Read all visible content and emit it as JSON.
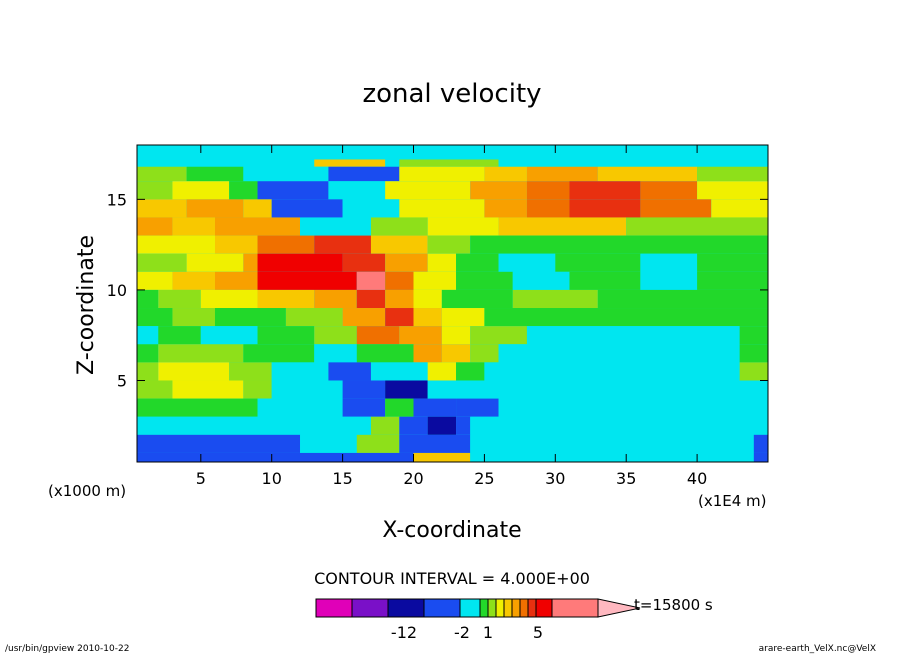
{
  "chart_data": {
    "type": "heatmap",
    "title": "zonal velocity",
    "xlabel": "X-coordinate",
    "ylabel": "Z-coordinate",
    "x_unit_left": "(x1000 m)",
    "x_unit_right": "(x1E4 m)",
    "xlim": [
      0.5,
      45
    ],
    "ylim": [
      0.5,
      18
    ],
    "x_ticks": [
      "5",
      "10",
      "15",
      "20",
      "25",
      "30",
      "35",
      "40"
    ],
    "y_ticks": [
      "5",
      "10",
      "15"
    ],
    "contour_interval_text": "CONTOUR INTERVAL = 4.000E+00",
    "time_label": "t=15800 s",
    "colorbar": {
      "colors": [
        "#e000b8",
        "#7a10c8",
        "#0a0aa0",
        "#1a4cf0",
        "#00e6f0",
        "#22d82a",
        "#8ee01a",
        "#f0f000",
        "#f8c800",
        "#f8a000",
        "#f07000",
        "#e83010",
        "#f00000",
        "#ff7a7a",
        "#ffb8c0"
      ],
      "labels": [
        "-12",
        "-2",
        "1",
        "5"
      ]
    },
    "bands": [
      {
        "z": [
          17.2,
          18
        ],
        "x": [
          [
            0.5,
            45
          ]
        ],
        "level": 4
      },
      {
        "z": [
          16.8,
          17.2
        ],
        "x": [
          [
            7,
            13
          ],
          [
            13,
            18
          ],
          [
            19,
            26
          ],
          [
            26,
            45
          ]
        ],
        "level": [
          4,
          8,
          6,
          4
        ]
      },
      {
        "z": [
          16.0,
          16.8
        ],
        "x": [
          [
            0.5,
            4
          ],
          [
            4,
            8
          ],
          [
            8,
            14
          ],
          [
            14,
            19
          ],
          [
            19,
            25
          ],
          [
            25,
            28
          ],
          [
            28,
            33
          ],
          [
            33,
            40
          ],
          [
            40,
            45
          ]
        ],
        "level": [
          6,
          5,
          4,
          3,
          7,
          8,
          9,
          8,
          6
        ]
      },
      {
        "z": [
          15.0,
          16.0
        ],
        "x": [
          [
            0.5,
            3
          ],
          [
            3,
            7
          ],
          [
            7,
            9
          ],
          [
            9,
            14
          ],
          [
            14,
            18
          ],
          [
            18,
            24
          ],
          [
            24,
            28
          ],
          [
            28,
            31
          ],
          [
            31,
            36
          ],
          [
            36,
            40
          ],
          [
            40,
            45
          ]
        ],
        "level": [
          6,
          7,
          5,
          3,
          4,
          7,
          9,
          10,
          11,
          10,
          7
        ]
      },
      {
        "z": [
          14.0,
          15.0
        ],
        "x": [
          [
            0.5,
            4
          ],
          [
            4,
            8
          ],
          [
            8,
            10
          ],
          [
            10,
            15
          ],
          [
            15,
            19
          ],
          [
            19,
            25
          ],
          [
            25,
            28
          ],
          [
            28,
            31
          ],
          [
            31,
            36
          ],
          [
            36,
            41
          ],
          [
            41,
            45
          ]
        ],
        "level": [
          8,
          9,
          8,
          3,
          4,
          7,
          9,
          10,
          11,
          10,
          7
        ]
      },
      {
        "z": [
          13.0,
          14.0
        ],
        "x": [
          [
            0.5,
            3
          ],
          [
            3,
            6
          ],
          [
            6,
            12
          ],
          [
            12,
            17
          ],
          [
            17,
            21
          ],
          [
            21,
            26
          ],
          [
            26,
            35
          ],
          [
            35,
            45
          ]
        ],
        "level": [
          9,
          8,
          9,
          4,
          6,
          7,
          8,
          6
        ]
      },
      {
        "z": [
          12.0,
          13.0
        ],
        "x": [
          [
            0.5,
            6
          ],
          [
            6,
            9
          ],
          [
            9,
            13
          ],
          [
            13,
            17
          ],
          [
            17,
            21
          ],
          [
            21,
            24
          ],
          [
            24,
            45
          ]
        ],
        "level": [
          7,
          8,
          10,
          11,
          8,
          6,
          5
        ]
      },
      {
        "z": [
          11.0,
          12.0
        ],
        "x": [
          [
            0.5,
            4
          ],
          [
            4,
            8
          ],
          [
            8,
            9
          ],
          [
            9,
            15
          ],
          [
            15,
            18
          ],
          [
            18,
            21
          ],
          [
            21,
            23
          ],
          [
            23,
            26
          ],
          [
            26,
            30
          ],
          [
            30,
            36
          ],
          [
            36,
            40
          ],
          [
            40,
            45
          ]
        ],
        "level": [
          6,
          7,
          9,
          12,
          11,
          9,
          7,
          5,
          4,
          5,
          4,
          5
        ]
      },
      {
        "z": [
          10.0,
          11.0
        ],
        "x": [
          [
            0.5,
            3
          ],
          [
            3,
            6
          ],
          [
            6,
            9
          ],
          [
            9,
            16
          ],
          [
            16,
            18
          ],
          [
            18,
            20
          ],
          [
            20,
            23
          ],
          [
            23,
            27
          ],
          [
            27,
            31
          ],
          [
            31,
            36
          ],
          [
            36,
            40
          ],
          [
            40,
            45
          ]
        ],
        "level": [
          7,
          8,
          9,
          12,
          13,
          10,
          7,
          5,
          4,
          5,
          4,
          5
        ]
      },
      {
        "z": [
          9.0,
          10.0
        ],
        "x": [
          [
            0.5,
            2
          ],
          [
            2,
            5
          ],
          [
            5,
            9
          ],
          [
            9,
            13
          ],
          [
            13,
            16
          ],
          [
            16,
            18
          ],
          [
            18,
            20
          ],
          [
            20,
            22
          ],
          [
            22,
            27
          ],
          [
            27,
            33
          ],
          [
            33,
            45
          ]
        ],
        "level": [
          5,
          6,
          7,
          8,
          9,
          11,
          9,
          7,
          5,
          6,
          5
        ]
      },
      {
        "z": [
          8.0,
          9.0
        ],
        "x": [
          [
            0.5,
            3
          ],
          [
            3,
            6
          ],
          [
            6,
            11
          ],
          [
            11,
            15
          ],
          [
            15,
            18
          ],
          [
            18,
            20
          ],
          [
            20,
            22
          ],
          [
            22,
            25
          ],
          [
            25,
            45
          ]
        ],
        "level": [
          5,
          6,
          5,
          6,
          9,
          11,
          8,
          7,
          5
        ]
      },
      {
        "z": [
          7.0,
          8.0
        ],
        "x": [
          [
            0.5,
            2
          ],
          [
            2,
            5
          ],
          [
            5,
            9
          ],
          [
            9,
            13
          ],
          [
            13,
            16
          ],
          [
            16,
            19
          ],
          [
            19,
            22
          ],
          [
            22,
            24
          ],
          [
            24,
            28
          ],
          [
            28,
            43
          ],
          [
            43,
            45
          ]
        ],
        "level": [
          4,
          5,
          4,
          5,
          6,
          10,
          9,
          7,
          6,
          4,
          5
        ]
      },
      {
        "z": [
          6.0,
          7.0
        ],
        "x": [
          [
            0.5,
            2
          ],
          [
            2,
            8
          ],
          [
            8,
            13
          ],
          [
            13,
            16
          ],
          [
            16,
            20
          ],
          [
            20,
            22
          ],
          [
            22,
            24
          ],
          [
            24,
            26
          ],
          [
            26,
            43
          ],
          [
            43,
            45
          ]
        ],
        "level": [
          5,
          6,
          5,
          4,
          5,
          9,
          8,
          6,
          4,
          5
        ]
      },
      {
        "z": [
          5.0,
          6.0
        ],
        "x": [
          [
            0.5,
            2
          ],
          [
            2,
            7
          ],
          [
            7,
            10
          ],
          [
            10,
            14
          ],
          [
            14,
            17
          ],
          [
            17,
            21
          ],
          [
            21,
            23
          ],
          [
            23,
            25
          ],
          [
            25,
            43
          ],
          [
            43,
            45
          ]
        ],
        "level": [
          6,
          7,
          6,
          4,
          3,
          4,
          7,
          5,
          4,
          6
        ]
      },
      {
        "z": [
          4.0,
          5.0
        ],
        "x": [
          [
            0.5,
            3
          ],
          [
            3,
            8
          ],
          [
            8,
            10
          ],
          [
            10,
            15
          ],
          [
            15,
            18
          ],
          [
            18,
            21
          ],
          [
            21,
            23
          ],
          [
            23,
            45
          ]
        ],
        "level": [
          6,
          7,
          6,
          4,
          3,
          2,
          4,
          4
        ]
      },
      {
        "z": [
          3.0,
          4.0
        ],
        "x": [
          [
            0.5,
            9
          ],
          [
            9,
            15
          ],
          [
            15,
            18
          ],
          [
            18,
            20
          ],
          [
            20,
            23
          ],
          [
            23,
            26
          ],
          [
            26,
            45
          ]
        ],
        "level": [
          5,
          4,
          3,
          5,
          3,
          3,
          4
        ]
      },
      {
        "z": [
          2.0,
          3.0
        ],
        "x": [
          [
            0.5,
            2
          ],
          [
            2,
            15
          ],
          [
            15,
            17
          ],
          [
            17,
            19
          ],
          [
            19,
            21
          ],
          [
            21,
            23
          ],
          [
            23,
            24
          ],
          [
            24,
            45
          ]
        ],
        "level": [
          4,
          4,
          4,
          6,
          3,
          2,
          3,
          4
        ]
      },
      {
        "z": [
          1.0,
          2.0
        ],
        "x": [
          [
            0.5,
            12
          ],
          [
            12,
            16
          ],
          [
            16,
            19
          ],
          [
            19,
            24
          ],
          [
            24,
            44
          ],
          [
            44,
            45
          ]
        ],
        "level": [
          3,
          4,
          6,
          3,
          4,
          3
        ]
      },
      {
        "z": [
          0.5,
          1.0
        ],
        "x": [
          [
            0.5,
            20
          ],
          [
            20,
            24
          ],
          [
            24,
            44
          ],
          [
            44,
            45
          ]
        ],
        "level": [
          3,
          8,
          4,
          3
        ]
      }
    ]
  },
  "footer": {
    "left": "/usr/bin/gpview  2010-10-22",
    "right": "arare-earth_VelX.nc@VelX"
  }
}
